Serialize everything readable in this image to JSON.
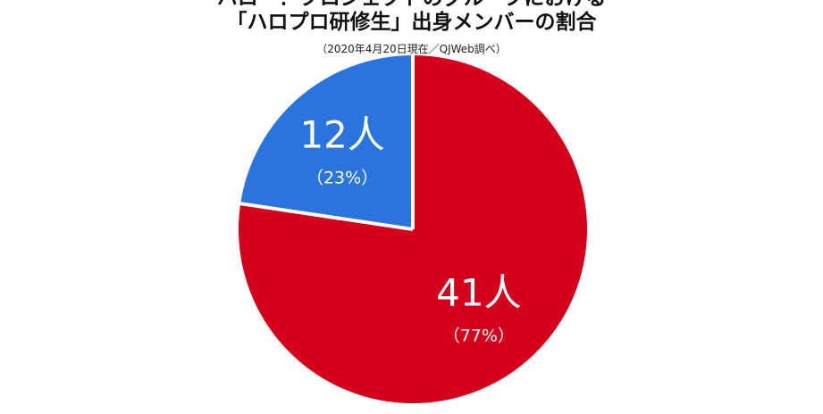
{
  "title_line_1": "ハロー！プロジェクトのグループにおける",
  "title_line_2": "「ハロプロ研修生」出身メンバーの割合",
  "subtitle": "（2020年4月20日現在／QJWeb調べ）",
  "colors": {
    "blue": "#2a74e0",
    "red": "#d4001c",
    "separator": "#ffffff",
    "label": "#ffffff"
  },
  "chart_data": {
    "type": "pie",
    "title": "ハロー！プロジェクトのグループにおける「ハロプロ研修生」出身メンバーの割合",
    "subtitle": "（2020年4月20日現在／QJWeb調べ）",
    "start": "12 o'clock",
    "direction": "counterclockwise",
    "slices": [
      {
        "value": 12,
        "label": "12人",
        "percent_label": "（23%）",
        "color": "#2a74e0"
      },
      {
        "value": 41,
        "label": "41人",
        "percent_label": "（77%）",
        "color": "#d4001c"
      }
    ]
  }
}
